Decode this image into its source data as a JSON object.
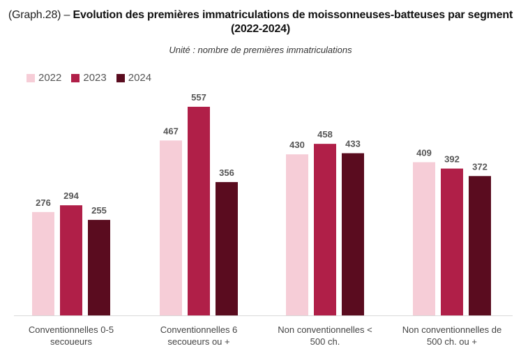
{
  "title": {
    "prefix": "(Graph.28) – ",
    "main": "Evolution des premières immatriculations de moissonneuses-batteuses par segment (2022-2024)"
  },
  "subtitle": "Unité : nombre de premières immatriculations",
  "colors": {
    "2022": "#f6cdd7",
    "2023": "#b01f48",
    "2024": "#5a0c1f",
    "axis": "#d9d9d9"
  },
  "chart_data": {
    "type": "bar",
    "categories": [
      [
        "Conventionnelles 0-5",
        "secoueurs"
      ],
      [
        "Conventionnelles 6",
        "secoueurs ou +"
      ],
      [
        "Non conventionnelles <",
        "500 ch."
      ],
      [
        "Non conventionnelles de",
        "500 ch. ou +"
      ]
    ],
    "series": [
      {
        "name": "2022",
        "values": [
          276,
          467,
          430,
          409
        ]
      },
      {
        "name": "2023",
        "values": [
          294,
          557,
          458,
          392
        ]
      },
      {
        "name": "2024",
        "values": [
          255,
          356,
          433,
          372
        ]
      }
    ],
    "legend_position": "top-left",
    "grid": false
  }
}
